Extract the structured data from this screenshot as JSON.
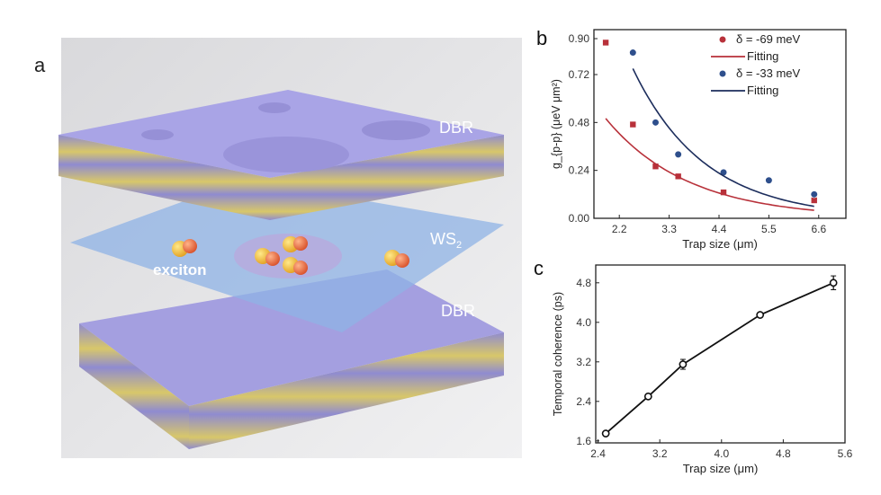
{
  "panel_a": {
    "label": "a",
    "top_layer": "DBR",
    "middle_layer": "WS",
    "middle_layer_sub": "2",
    "exciton_label": "exciton",
    "bottom_layer": "DBR"
  },
  "chart_data": [
    {
      "panel": "b",
      "type": "scatter",
      "xlabel": "Trap size (μm)",
      "ylabel": "g_{p-p} (μeV μm²)",
      "xlim": [
        1.64,
        7.2
      ],
      "ylim": [
        0,
        0.945
      ],
      "xticks": [
        "2.2",
        "3.3",
        "4.4",
        "5.5",
        "6.6"
      ],
      "xtick_values": [
        2.2,
        3.3,
        4.4,
        5.5,
        6.6
      ],
      "yticks": [
        "0.00",
        "0.24",
        "0.48",
        "0.72",
        "0.90"
      ],
      "ytick_values": [
        0,
        0.24,
        0.48,
        0.72,
        0.9
      ],
      "legend_position": "top-right",
      "series": [
        {
          "name": "δ = -69 meV",
          "color": "#b8313a",
          "marker": "square",
          "x": [
            1.9,
            2.5,
            3.0,
            3.5,
            4.5,
            6.5
          ],
          "y": [
            0.88,
            0.47,
            0.26,
            0.21,
            0.13,
            0.09
          ]
        },
        {
          "name": "Fitting",
          "color": "#b8313a",
          "type": "line",
          "model": "a*exp(-b*x)",
          "a": 1.419,
          "b": 0.549,
          "x_range": [
            1.9,
            6.5
          ]
        },
        {
          "name": "δ = -33 meV",
          "color": "#2e4f8c",
          "marker": "circle",
          "x": [
            2.5,
            3.0,
            3.5,
            4.5,
            5.5,
            6.5
          ],
          "y": [
            0.83,
            0.48,
            0.32,
            0.23,
            0.19,
            0.12
          ]
        },
        {
          "name": "Fitting",
          "color": "#1c2d5c",
          "type": "line",
          "model": "a*exp(-b*x)",
          "a": 3.63,
          "b": 0.631,
          "x_range": [
            2.5,
            6.5
          ]
        }
      ]
    },
    {
      "panel": "c",
      "type": "line",
      "xlabel": "Trap size (μm)",
      "ylabel": "Temporal coherence (ps)",
      "xlim": [
        2.37,
        5.6
      ],
      "ylim": [
        1.56,
        5.16
      ],
      "xticks": [
        "2.4",
        "3.2",
        "4.0",
        "4.8",
        "5.6"
      ],
      "xtick_values": [
        2.4,
        3.2,
        4.0,
        4.8,
        5.6
      ],
      "yticks": [
        "1.6",
        "2.4",
        "3.2",
        "4.0",
        "4.8"
      ],
      "ytick_values": [
        1.6,
        2.4,
        3.2,
        4.0,
        4.8
      ],
      "series": [
        {
          "name": "Temporal coherence",
          "color": "#111111",
          "x": [
            2.5,
            3.05,
            3.5,
            4.5,
            5.45
          ],
          "y": [
            1.75,
            2.5,
            3.15,
            4.15,
            4.8
          ],
          "err": [
            0.03,
            0.03,
            0.1,
            0.03,
            0.14
          ]
        }
      ]
    }
  ]
}
